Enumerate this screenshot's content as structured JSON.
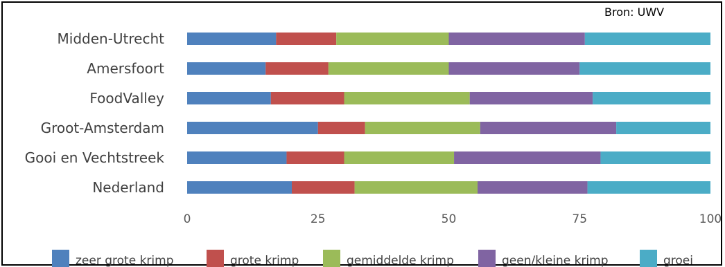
{
  "chart_data": {
    "type": "bar",
    "orientation": "horizontal",
    "stacked": true,
    "source": "Bron: UWV",
    "categories": [
      "Midden-Utrecht",
      "Amersfoort",
      "FoodValley",
      "Groot-Amsterdam",
      "Gooi en Vechtstreek",
      "Nederland"
    ],
    "series": [
      {
        "name": "zeer grote krimp",
        "color": "#4f81bd",
        "values": [
          17,
          15,
          16,
          25,
          19,
          20
        ]
      },
      {
        "name": "grote krimp",
        "color": "#c0504d",
        "values": [
          11.5,
          12,
          14,
          9,
          11,
          12
        ]
      },
      {
        "name": "gemiddelde krimp",
        "color": "#9bbb59",
        "values": [
          21.5,
          23,
          24,
          22,
          21,
          23.5
        ]
      },
      {
        "name": "geen/kleine krimp",
        "color": "#8064a2",
        "values": [
          26,
          25,
          23.5,
          26,
          28,
          21
        ]
      },
      {
        "name": "groei",
        "color": "#4bacc6",
        "values": [
          24,
          25,
          22.5,
          18,
          21,
          23.5
        ]
      }
    ],
    "xlim": [
      0,
      100
    ],
    "xticks": [
      "0",
      "25",
      "50",
      "75",
      "100"
    ],
    "grid": false,
    "legend": "bottom"
  }
}
